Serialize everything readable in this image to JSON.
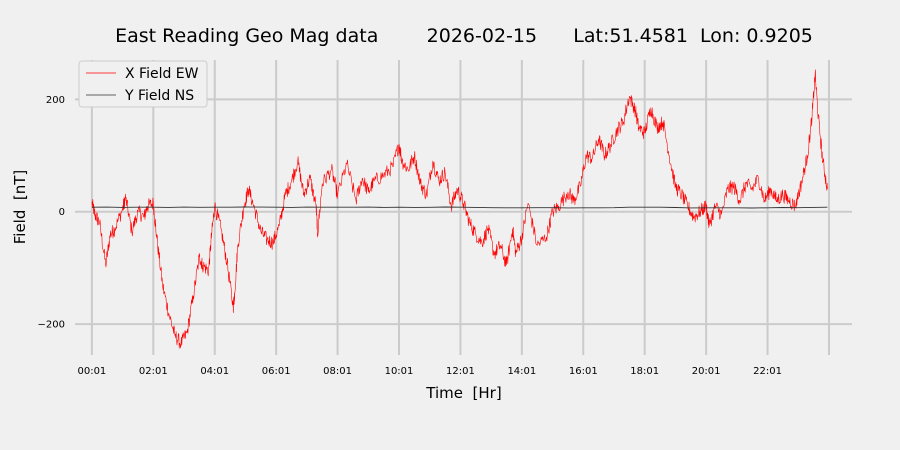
{
  "chart_data": {
    "type": "line",
    "title": "East Reading Geo Mag data        2026-02-15      Lat:51.4581  Lon: 0.9205",
    "xlabel": "Time  [Hr]",
    "ylabel": "Field  [nT]",
    "xlim": [
      -0.55,
      24.75
    ],
    "ylim": [
      -255,
      270
    ],
    "x_ticks": [
      {
        "hour": 0,
        "label": "00:01"
      },
      {
        "hour": 2,
        "label": "02:01"
      },
      {
        "hour": 4,
        "label": "04:01"
      },
      {
        "hour": 6,
        "label": "06:01"
      },
      {
        "hour": 8,
        "label": "08:01"
      },
      {
        "hour": 10,
        "label": "10:01"
      },
      {
        "hour": 12,
        "label": "12:01"
      },
      {
        "hour": 14,
        "label": "14:01"
      },
      {
        "hour": 16,
        "label": "16:01"
      },
      {
        "hour": 18,
        "label": "18:01"
      },
      {
        "hour": 20,
        "label": "20:01"
      },
      {
        "hour": 22,
        "label": "22:01"
      },
      {
        "hour": 24,
        "label": ""
      }
    ],
    "y_ticks": [
      {
        "value": 200,
        "label": "200"
      },
      {
        "value": 0,
        "label": "0"
      },
      {
        "value": -200,
        "label": "−200"
      }
    ],
    "grid": true,
    "legend_position": "top-left",
    "colors": {
      "background": "#f0f0f0",
      "grid": "#cbcbcb",
      "x_series": "#ff0000",
      "y_series": "#333333"
    },
    "series": [
      {
        "name": "X Field EW",
        "color": "#ff0000",
        "x": [
          0,
          0.1,
          0.25,
          0.45,
          0.6,
          0.75,
          1.0,
          1.1,
          1.3,
          1.5,
          1.7,
          1.8,
          2.0,
          2.1,
          2.3,
          2.5,
          2.7,
          2.9,
          3.1,
          3.3,
          3.5,
          3.6,
          3.8,
          3.9,
          4.0,
          4.2,
          4.4,
          4.6,
          4.65,
          4.75,
          4.95,
          5.1,
          5.3,
          5.5,
          5.7,
          5.9,
          6.1,
          6.3,
          6.5,
          6.7,
          6.9,
          7.1,
          7.3,
          7.35,
          7.5,
          7.8,
          8.0,
          8.3,
          8.6,
          8.8,
          9.0,
          9.2,
          9.5,
          9.8,
          10.0,
          10.1,
          10.3,
          10.5,
          10.7,
          10.9,
          11.1,
          11.3,
          11.5,
          11.7,
          11.9,
          12.1,
          12.3,
          12.5,
          12.7,
          12.9,
          13.1,
          13.3,
          13.5,
          13.7,
          13.8,
          14.0,
          14.2,
          14.5,
          14.8,
          15.0,
          15.2,
          15.5,
          15.7,
          15.9,
          16.1,
          16.3,
          16.5,
          16.7,
          16.9,
          17.1,
          17.3,
          17.5,
          17.7,
          17.8,
          18.0,
          18.2,
          18.4,
          18.6,
          18.8,
          19.0,
          19.2,
          19.4,
          19.6,
          19.8,
          20.0,
          20.1,
          20.3,
          20.5,
          20.7,
          20.9,
          21.1,
          21.3,
          21.5,
          21.7,
          21.9,
          22.1,
          22.3,
          22.5,
          22.7,
          22.9,
          23.1,
          23.3,
          23.45,
          23.55,
          23.65,
          23.8,
          23.95
        ],
        "values": [
          15,
          -5,
          -20,
          -95,
          -40,
          -30,
          5,
          25,
          -35,
          0,
          -10,
          10,
          15,
          -40,
          -130,
          -180,
          -220,
          -235,
          -215,
          -150,
          -80,
          -95,
          -105,
          -40,
          10,
          -30,
          -90,
          -170,
          -145,
          -60,
          10,
          40,
          5,
          -35,
          -50,
          -55,
          -25,
          30,
          55,
          90,
          30,
          60,
          10,
          -40,
          50,
          75,
          30,
          85,
          20,
          60,
          35,
          55,
          65,
          80,
          120,
          90,
          75,
          100,
          50,
          30,
          90,
          55,
          70,
          10,
          40,
          15,
          -20,
          -40,
          -55,
          -30,
          -75,
          -60,
          -95,
          -30,
          -75,
          -45,
          15,
          -60,
          -45,
          0,
          10,
          35,
          20,
          45,
          100,
          95,
          130,
          100,
          120,
          145,
          160,
          205,
          180,
          150,
          140,
          185,
          150,
          160,
          100,
          45,
          30,
          10,
          -10,
          0,
          10,
          -25,
          10,
          -5,
          40,
          45,
          20,
          50,
          40,
          60,
          20,
          40,
          20,
          30,
          20,
          10,
          50,
          100,
          170,
          245,
          170,
          90,
          40
        ]
      },
      {
        "name": "Y Field NS",
        "color": "#333333",
        "x": [
          0,
          2,
          4,
          6,
          8,
          10,
          12,
          14,
          16,
          18,
          20,
          22,
          23.95
        ],
        "values": [
          8,
          8,
          8,
          8,
          8,
          8,
          8,
          7,
          7,
          8,
          7,
          7,
          8
        ]
      }
    ]
  }
}
